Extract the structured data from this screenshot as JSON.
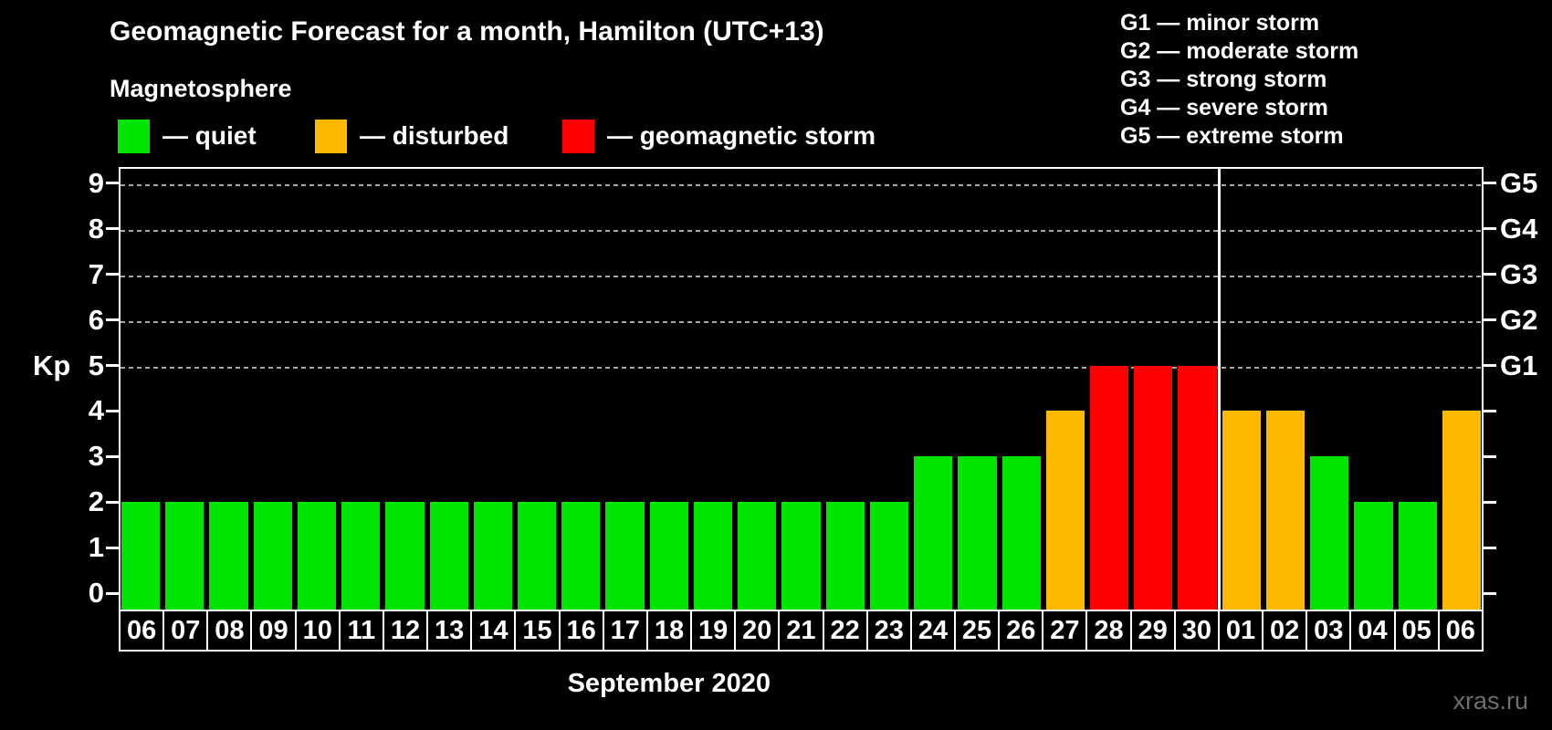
{
  "title": "Geomagnetic Forecast for a month, Hamilton (UTC+13)",
  "legend": {
    "heading": "Magnetosphere",
    "items": [
      {
        "name": "quiet",
        "label": "— quiet",
        "color": "#00e400"
      },
      {
        "name": "disturbed",
        "label": "— disturbed",
        "color": "#fdb900"
      },
      {
        "name": "storm",
        "label": "— geomagnetic storm",
        "color": "#ff0000"
      }
    ]
  },
  "storm_legend": [
    "G1 — minor storm",
    "G2 — moderate storm",
    "G3 — strong storm",
    "G4 — severe storm",
    "G5 — extreme storm"
  ],
  "chart_data": {
    "type": "bar",
    "title": "Geomagnetic Forecast for a month, Hamilton (UTC+13)",
    "ylabel": "Kp",
    "ylim": [
      0,
      9
    ],
    "yticks": [
      0,
      1,
      2,
      3,
      4,
      5,
      6,
      7,
      8,
      9
    ],
    "grid_values": [
      5,
      6,
      7,
      8,
      9
    ],
    "grid_on": true,
    "right_axis_labels": [
      {
        "label": "G1",
        "value": 5
      },
      {
        "label": "G2",
        "value": 6
      },
      {
        "label": "G3",
        "value": 7
      },
      {
        "label": "G4",
        "value": 8
      },
      {
        "label": "G5",
        "value": 9
      }
    ],
    "categories": [
      "06",
      "07",
      "08",
      "09",
      "10",
      "11",
      "12",
      "13",
      "14",
      "15",
      "16",
      "17",
      "18",
      "19",
      "20",
      "21",
      "22",
      "23",
      "24",
      "25",
      "26",
      "27",
      "28",
      "29",
      "30",
      "01",
      "02",
      "03",
      "04",
      "05",
      "06"
    ],
    "values": [
      2,
      2,
      2,
      2,
      2,
      2,
      2,
      2,
      2,
      2,
      2,
      2,
      2,
      2,
      2,
      2,
      2,
      2,
      3,
      3,
      3,
      4,
      5,
      5,
      5,
      4,
      4,
      3,
      2,
      2,
      4
    ],
    "statuses": [
      "quiet",
      "quiet",
      "quiet",
      "quiet",
      "quiet",
      "quiet",
      "quiet",
      "quiet",
      "quiet",
      "quiet",
      "quiet",
      "quiet",
      "quiet",
      "quiet",
      "quiet",
      "quiet",
      "quiet",
      "quiet",
      "quiet",
      "quiet",
      "quiet",
      "disturbed",
      "storm",
      "storm",
      "storm",
      "disturbed",
      "disturbed",
      "quiet",
      "quiet",
      "quiet",
      "disturbed"
    ],
    "month_separator_after_index": 24,
    "xlabel": "September 2020",
    "legend_position": "top"
  },
  "colors": {
    "quiet": "#00e400",
    "disturbed": "#fdb900",
    "storm": "#ff0000",
    "grid": "#a8a8a8",
    "axis": "#ffffff",
    "watermark": "#6e6e6e"
  },
  "watermark": "xras.ru"
}
